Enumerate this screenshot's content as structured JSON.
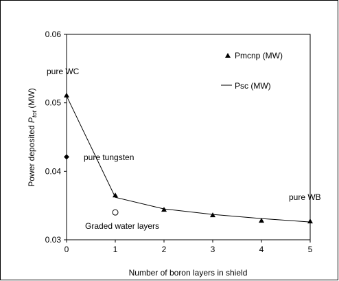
{
  "chart_data": {
    "type": "scatter",
    "title": "",
    "xlabel": "Number of boron layers in shield",
    "ylabel": "Power deposited P_tot (MW)",
    "ylabel_main": "Power deposited ",
    "ylabel_italic": "P",
    "ylabel_sub": "tot",
    "ylabel_unit": " (MW)",
    "xlim": [
      0,
      5
    ],
    "ylim": [
      0.03,
      0.06
    ],
    "x_ticks": [
      "0",
      "1",
      "2",
      "3",
      "4",
      "5"
    ],
    "y_ticks": [
      "0.03",
      "0.04",
      "0.05",
      "0.06"
    ],
    "grid": false,
    "legend_position": "top-right",
    "series": [
      {
        "name": "Pmcnp (MW)",
        "marker": "triangle",
        "x": [
          0,
          1,
          2,
          3,
          4,
          5
        ],
        "y": [
          0.0511,
          0.0365,
          0.0344,
          0.0336,
          0.0328,
          0.0327
        ]
      },
      {
        "name": "Psc (MW)",
        "marker": "line",
        "x": [
          0,
          1,
          2,
          3,
          4,
          5
        ],
        "y": [
          0.051,
          0.0362,
          0.0345,
          0.0337,
          0.0331,
          0.0326
        ]
      }
    ],
    "extra_points": [
      {
        "label": "pure tungsten",
        "marker": "diamond",
        "x": 0,
        "y": 0.0421
      },
      {
        "label": "Graded water layers",
        "marker": "open-circle",
        "x": 1,
        "y": 0.034
      }
    ],
    "annotations": [
      "pure WC",
      "pure tungsten",
      "Graded water layers",
      "pure WB"
    ]
  }
}
